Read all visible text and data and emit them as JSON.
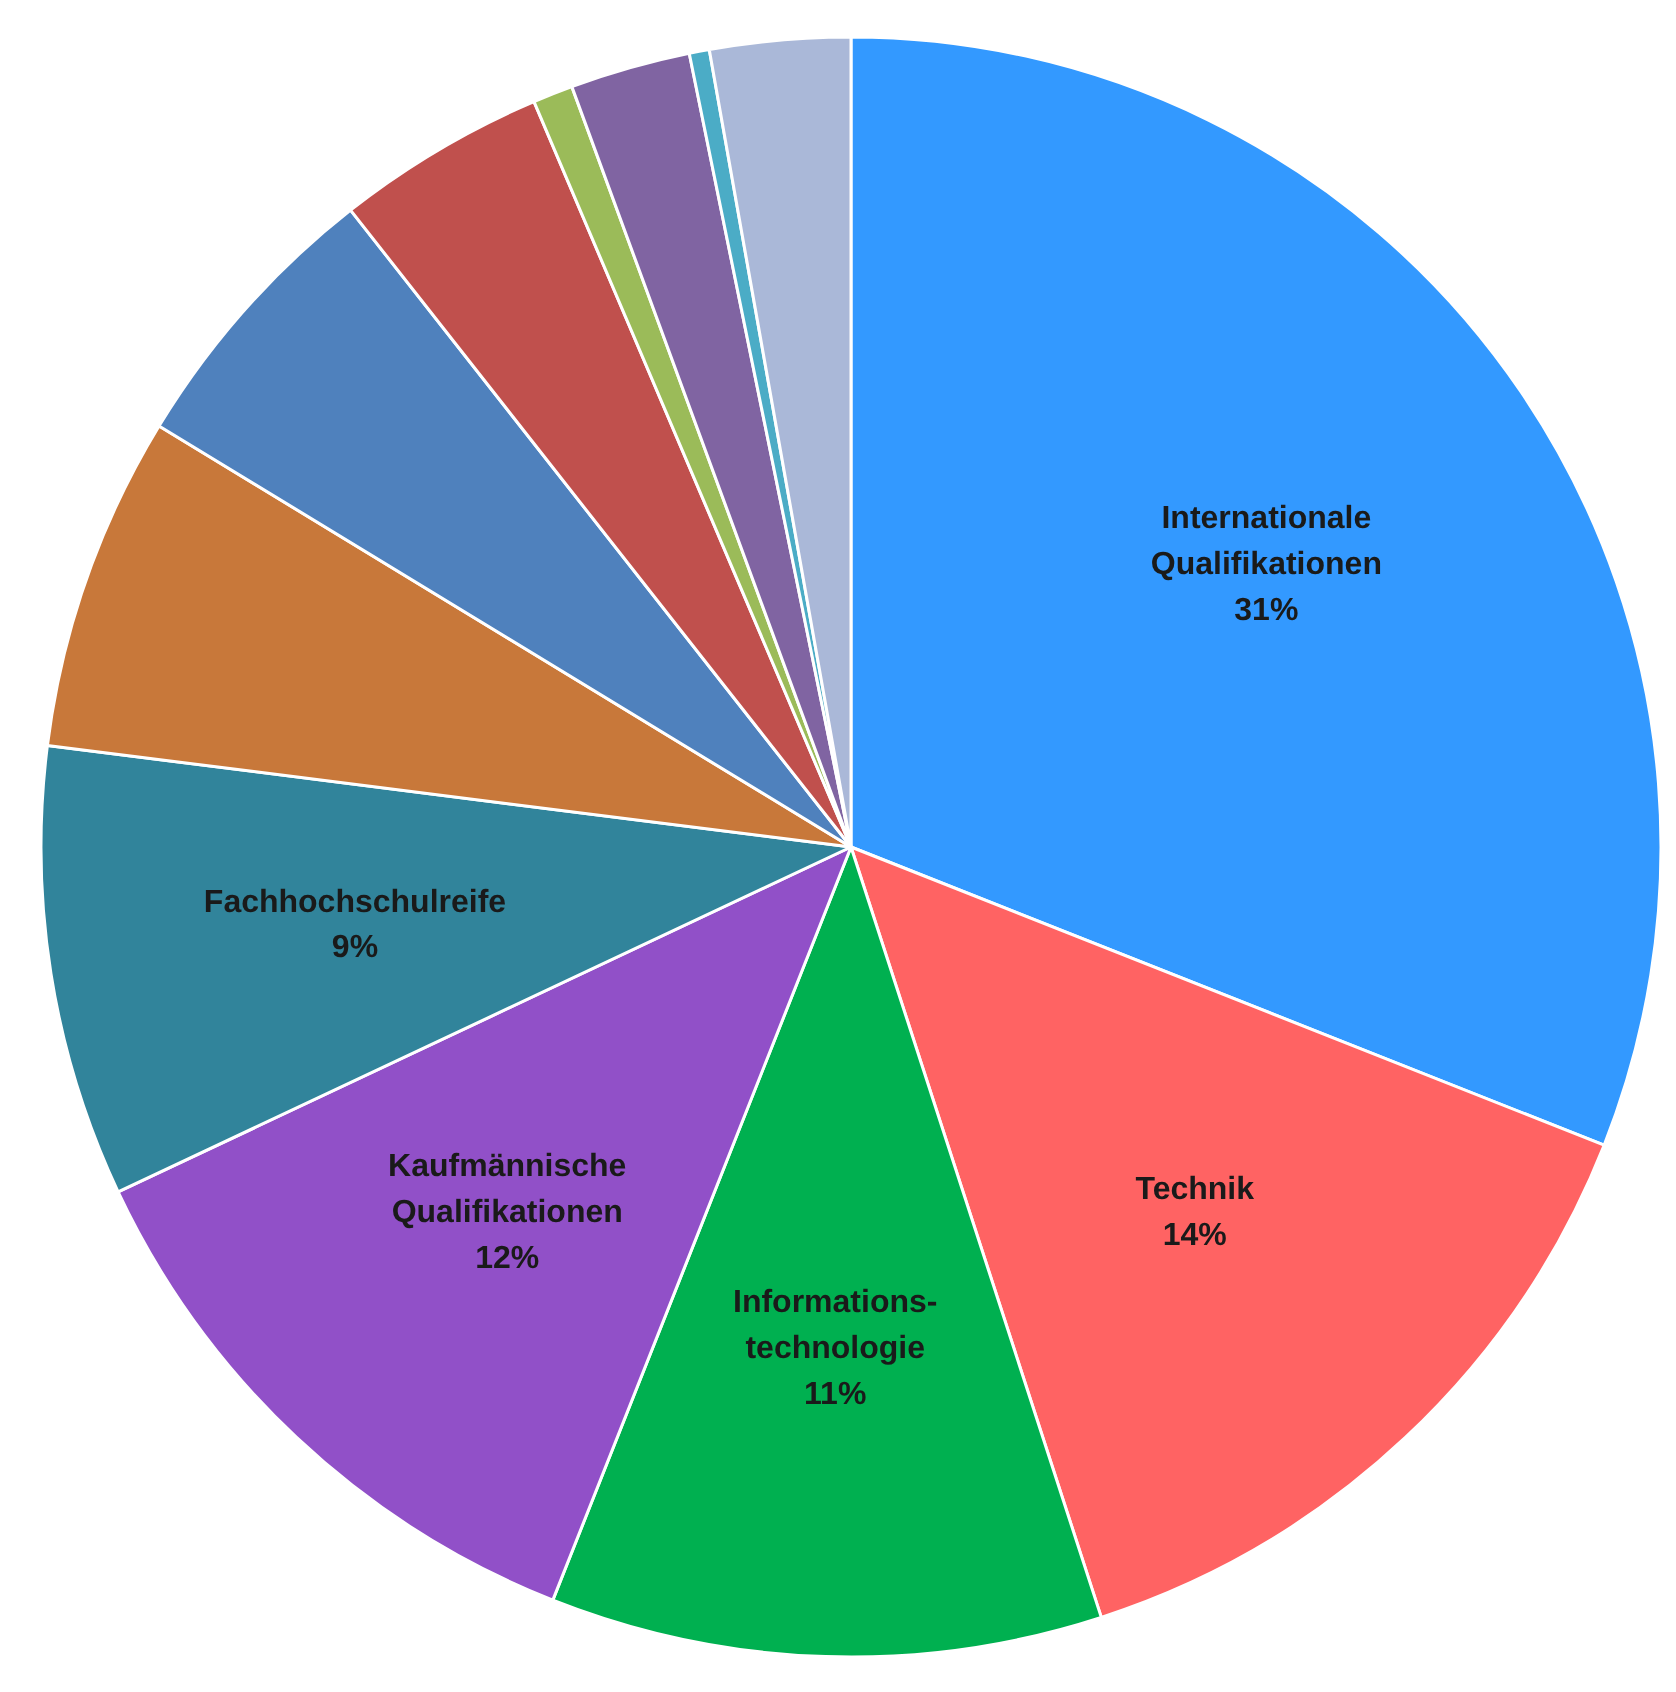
{
  "chart_data": {
    "type": "pie",
    "categories": [
      "Internationale\nQualifikationen",
      "Technik",
      "Informations-\ntechnologie",
      "Kaufmännische\nQualifikationen",
      "Fachhochschulreife",
      null,
      null,
      null,
      null,
      null,
      null,
      null
    ],
    "values": [
      31,
      14,
      11,
      12,
      9,
      6.7,
      5.7,
      4.2,
      0.8,
      2.4,
      0.4,
      2.8
    ],
    "value_labels": [
      "31%",
      "14%",
      "11%",
      "12%",
      "9%",
      null,
      null,
      null,
      null,
      null,
      null,
      null
    ],
    "colors": [
      "#3399ff",
      "#ff6363",
      "#00b050",
      "#9150c8",
      "#31849b",
      "#c8783a",
      "#4f81bd",
      "#c0504d",
      "#9bbb59",
      "#8064a2",
      "#4bacc6",
      "#aab8d8"
    ]
  }
}
